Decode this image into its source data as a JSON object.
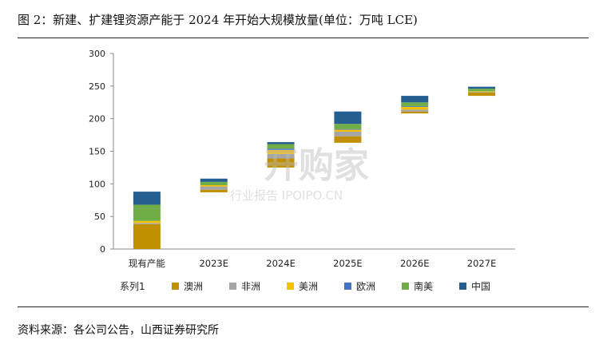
{
  "header": {
    "title": "图 2：新建、扩建锂资源产能于 2024 年开始大规模放量(单位：万吨 LCE)"
  },
  "footer": {
    "source": "资料来源：各公司公告，山西证券研究所"
  },
  "watermark": {
    "line1": "开购家",
    "line2": "行业报告 IPOIPO.CN"
  },
  "chart_data": {
    "type": "bar",
    "stacked": "waterfall",
    "title": "",
    "xlabel": "",
    "ylabel": "",
    "ylim": [
      0,
      300
    ],
    "yticks": [
      0,
      50,
      100,
      150,
      200,
      250,
      300
    ],
    "categories": [
      "现有产能",
      "2023E",
      "2024E",
      "2025E",
      "2026E",
      "2027E"
    ],
    "base": [
      0,
      87,
      125,
      163,
      208,
      235
    ],
    "legend": {
      "position": "bottom",
      "series_label": "系列1"
    },
    "series": [
      {
        "name": "澳洲",
        "color": "#C09000",
        "values": [
          38,
          4,
          14,
          10,
          3,
          5
        ]
      },
      {
        "name": "非洲",
        "color": "#A5A5A5",
        "values": [
          2,
          5,
          7,
          7,
          3,
          1
        ]
      },
      {
        "name": "美洲",
        "color": "#F5C200",
        "values": [
          3,
          2,
          6,
          3,
          4,
          1
        ]
      },
      {
        "name": "欧洲",
        "color": "#4472C4",
        "values": [
          0,
          0,
          2,
          1,
          1,
          0
        ]
      },
      {
        "name": "南美",
        "color": "#70AD47",
        "values": [
          25,
          5,
          7,
          8,
          6,
          4
        ]
      },
      {
        "name": "中国",
        "color": "#255E91",
        "values": [
          20,
          5,
          3,
          19,
          10,
          3
        ]
      }
    ]
  }
}
